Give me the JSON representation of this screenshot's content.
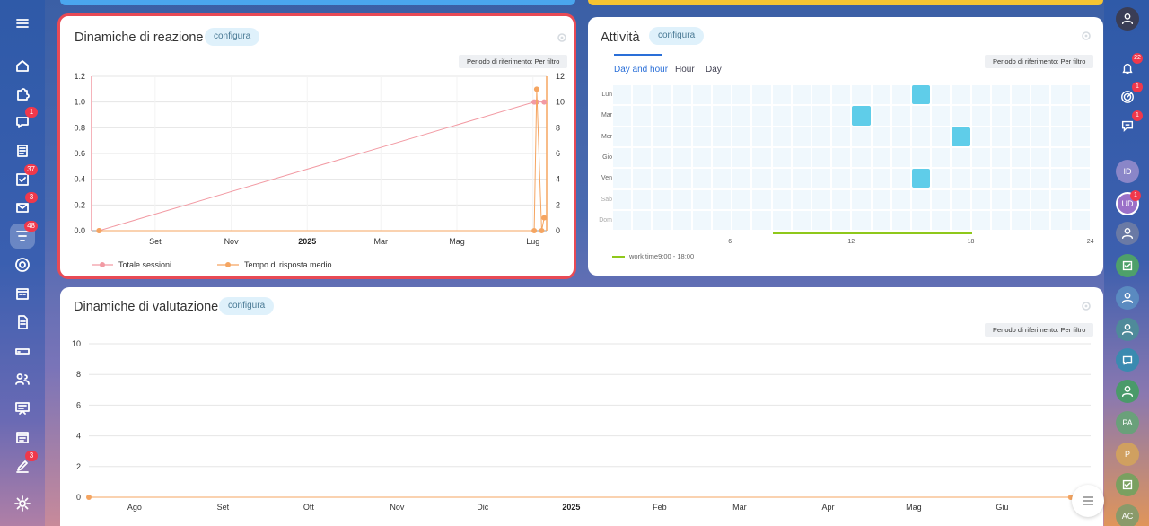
{
  "colors": {
    "accent": "#2a6fd8",
    "series_pink": "#f29aa3",
    "series_orange": "#f5a561",
    "heat_on": "#5fcde9",
    "worktime": "#8fc81a",
    "highlight_border": "#e84a55"
  },
  "left_nav": [
    {
      "icon": "menu-icon"
    },
    {
      "icon": "home-icon"
    },
    {
      "icon": "puzzle-icon"
    },
    {
      "icon": "chat-icon",
      "badge": "1"
    },
    {
      "icon": "news-icon"
    },
    {
      "icon": "tasks-icon",
      "badge": "37"
    },
    {
      "icon": "mail-icon",
      "badge": "3"
    },
    {
      "icon": "filter-icon",
      "badge": "48",
      "active": true
    },
    {
      "icon": "target-icon"
    },
    {
      "icon": "calendar-icon"
    },
    {
      "icon": "document-icon"
    },
    {
      "icon": "drive-icon"
    },
    {
      "icon": "contacts-icon"
    },
    {
      "icon": "presentation-icon"
    },
    {
      "icon": "schedule-icon"
    },
    {
      "icon": "edit-icon",
      "badge": "3"
    },
    {
      "icon": "settings-icon"
    }
  ],
  "right_nav": [
    {
      "icon": "user-avatar-icon"
    },
    {
      "icon": "bell-icon",
      "badge": "22"
    },
    {
      "icon": "radar-icon",
      "badge": "1"
    },
    {
      "icon": "search-chat-icon",
      "badge": "1"
    },
    {
      "label": "ID"
    },
    {
      "label": "UD",
      "badge": "1"
    },
    {
      "icon": "bot-avatar-icon"
    },
    {
      "icon": "check-avatar-icon"
    },
    {
      "icon": "group-avatar-icon"
    },
    {
      "icon": "group-avatar-icon-2"
    },
    {
      "icon": "chat-avatar-icon"
    },
    {
      "icon": "group-avatar-icon-3"
    },
    {
      "label": "PA"
    },
    {
      "label": "P"
    },
    {
      "icon": "check-avatar-icon-2"
    },
    {
      "label": "AC"
    }
  ],
  "reaction": {
    "title": "Dinamiche di reazione",
    "config": "configura",
    "period": "Periodo di riferimento: Per filtro",
    "legend": [
      "Totale sessioni",
      "Tempo di risposta medio"
    ]
  },
  "activity": {
    "title": "Attività",
    "config": "configura",
    "period": "Periodo di riferimento: Per filtro",
    "tabs": [
      "Day and hour",
      "Hour",
      "Day"
    ],
    "days": [
      "Lun",
      "Mar",
      "Mer",
      "Gio",
      "Ven",
      "Sab",
      "Dom"
    ],
    "x_ticks": [
      "6",
      "12",
      "18",
      "24"
    ],
    "legend": "work time9:00 - 18:00"
  },
  "rating": {
    "title": "Dinamiche di valutazione",
    "config": "configura",
    "period": "Periodo di riferimento: Per filtro"
  },
  "chart_data": [
    {
      "type": "line",
      "title": "Dinamiche di reazione",
      "x": [
        "Set",
        "Nov",
        "2025",
        "Mar",
        "Mag",
        "Lug"
      ],
      "y_left": {
        "range": [
          0,
          1.2
        ],
        "ticks": [
          "0.0",
          "0.2",
          "0.4",
          "0.6",
          "0.8",
          "1.0",
          "1.2"
        ]
      },
      "y_right": {
        "range": [
          0,
          12
        ],
        "ticks": [
          "0",
          "2",
          "4",
          "6",
          "8",
          "10",
          "12"
        ]
      },
      "series": [
        {
          "name": "Totale sessioni",
          "axis": "left",
          "points": [
            [
              "2024-07-18",
              0
            ],
            [
              "2025-07-02",
              1.0
            ],
            [
              "2025-07-04",
              1.0
            ],
            [
              "2025-07-10",
              1.0
            ]
          ]
        },
        {
          "name": "Tempo di risposta medio",
          "axis": "right",
          "points": [
            [
              "2024-07-18",
              0
            ],
            [
              "2025-07-02",
              0
            ],
            [
              "2025-07-04",
              11
            ],
            [
              "2025-07-08",
              0
            ],
            [
              "2025-07-10",
              1
            ]
          ]
        }
      ],
      "grid": true,
      "legend": "bottom-left"
    },
    {
      "type": "heatmap",
      "title": "Attività",
      "rows": [
        "Lun",
        "Mar",
        "Mer",
        "Gio",
        "Ven",
        "Sab",
        "Dom"
      ],
      "columns_hours": 24,
      "active_cells": [
        {
          "day": "Lun",
          "hour": 15
        },
        {
          "day": "Mar",
          "hour": 12
        },
        {
          "day": "Mer",
          "hour": 17
        },
        {
          "day": "Ven",
          "hour": 15
        }
      ],
      "work_time": "9:00 - 18:00"
    },
    {
      "type": "line",
      "title": "Dinamiche di valutazione",
      "x": [
        "Ago",
        "Set",
        "Ott",
        "Nov",
        "Dic",
        "2025",
        "Feb",
        "Mar",
        "Apr",
        "Mag",
        "Giu"
      ],
      "y": {
        "range": [
          0,
          10
        ],
        "ticks": [
          "0",
          "2",
          "4",
          "6",
          "8",
          "10"
        ]
      },
      "series": [
        {
          "points": [
            [
              "2024-07-16",
              0
            ],
            [
              "2025-06-25",
              0
            ],
            [
              "2025-06-30",
              0
            ]
          ]
        }
      ],
      "grid": true
    }
  ]
}
